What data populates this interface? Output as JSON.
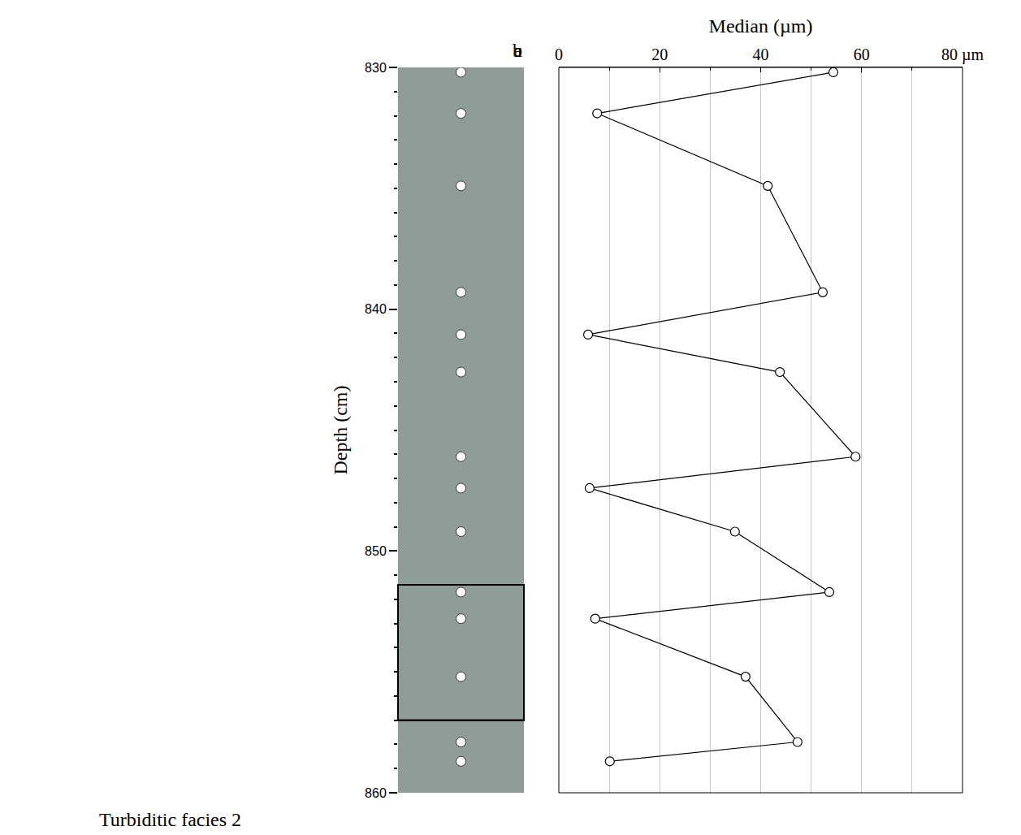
{
  "chart_data": {
    "type": "line",
    "caption": "Turbiditic facies 2",
    "panel_labels": [
      "a",
      "b",
      "c"
    ],
    "xlabel": "Median (µm)",
    "ylabel": "Depth (cm)",
    "x": [
      54.4,
      7.6,
      41.4,
      52.3,
      5.8,
      43.8,
      58.8,
      6.1,
      34.9,
      53.6,
      7.2,
      37.0,
      47.3,
      10.1
    ],
    "y": [
      830.2,
      831.9,
      834.9,
      839.3,
      841.05,
      842.6,
      846.1,
      847.4,
      849.2,
      851.7,
      852.8,
      855.2,
      857.9,
      858.7
    ],
    "xlim": [
      0,
      80
    ],
    "xticks": [
      0,
      20,
      40,
      60,
      {
        "value": 80,
        "label": "80 µm"
      }
    ],
    "ylim": [
      860,
      830
    ],
    "yticks": [
      830,
      840,
      850,
      860
    ],
    "boxed_interval": [
      851.4,
      857.0
    ],
    "grid": true,
    "color": "#000000",
    "marker": "circle-open",
    "line_style": "solid"
  }
}
